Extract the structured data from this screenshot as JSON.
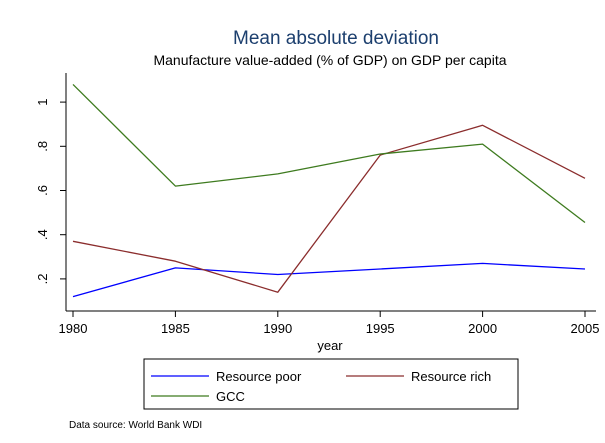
{
  "chart_data": {
    "type": "line",
    "title": "Mean absolute deviation",
    "subtitle": "Manufacture value-added (% of GDP) on GDP per capita",
    "xlabel": "year",
    "ylabel": "",
    "x": [
      1980,
      1985,
      1990,
      1995,
      2000,
      2005
    ],
    "xticks": [
      1980,
      1985,
      1990,
      1995,
      2000,
      2005
    ],
    "xtick_labels": [
      "1980",
      "1985",
      "1990",
      "1995",
      "2000",
      "2005"
    ],
    "yticks": [
      0.2,
      0.4,
      0.6,
      0.8,
      1.0
    ],
    "ytick_labels": [
      ".2",
      ".4",
      ".6",
      ".8",
      "1"
    ],
    "xlim": [
      1980,
      2005
    ],
    "ylim": [
      0.1,
      1.1
    ],
    "grid": false,
    "legend_position": "bottom",
    "series": [
      {
        "name": "Resource poor",
        "color": "#0000ff",
        "values": [
          0.12,
          0.25,
          0.22,
          0.245,
          0.27,
          0.245
        ]
      },
      {
        "name": "Resource rich",
        "color": "#8b2d2d",
        "values": [
          0.37,
          0.28,
          0.14,
          0.76,
          0.895,
          0.655
        ]
      },
      {
        "name": "GCC",
        "color": "#3e7b1f",
        "values": [
          1.08,
          0.62,
          0.675,
          0.765,
          0.81,
          0.455
        ]
      }
    ],
    "note": "Data source: World Bank WDI"
  }
}
